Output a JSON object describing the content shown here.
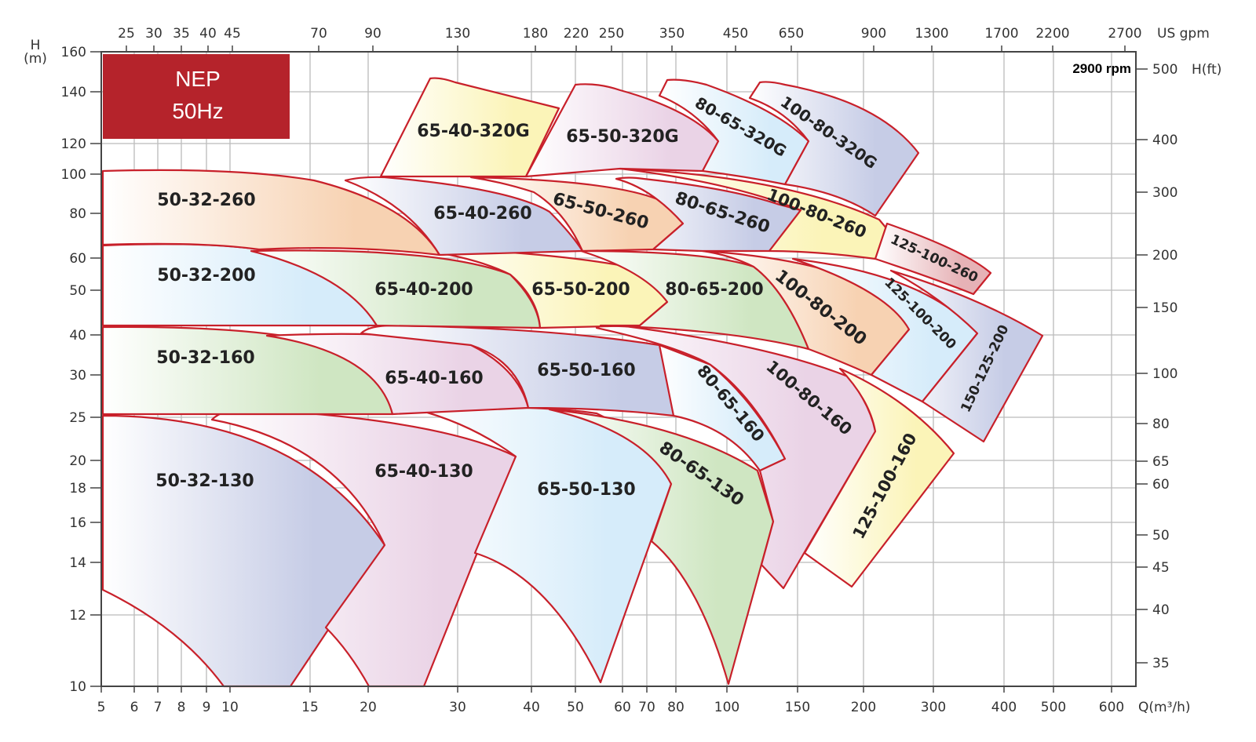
{
  "brand_box": {
    "line1": "NEP",
    "line2": "50Hz",
    "color": "#b5232b"
  },
  "speed_label": "2900 rpm",
  "chart_data": {
    "type": "area",
    "title": "",
    "x_axis": {
      "label": "Q(m³/h)",
      "scale": "log",
      "range": [
        5,
        700
      ],
      "ticks": [
        5,
        6,
        7,
        8,
        9,
        10,
        15,
        20,
        30,
        40,
        50,
        60,
        70,
        80,
        100,
        150,
        200,
        300,
        400,
        500,
        600
      ]
    },
    "x2_axis": {
      "label": "US gpm",
      "position": "top",
      "ticks": [
        25,
        30,
        35,
        40,
        45,
        70,
        90,
        130,
        180,
        220,
        250,
        350,
        450,
        650,
        900,
        1300,
        1700,
        2200,
        2700
      ]
    },
    "y_axis": {
      "label_top": "H",
      "label_unit": "(m)",
      "scale": "log",
      "range": [
        10,
        160
      ],
      "ticks": [
        10,
        12,
        14,
        16,
        18,
        20,
        25,
        30,
        40,
        50,
        60,
        80,
        100,
        120,
        140,
        160
      ]
    },
    "y2_axis": {
      "label": "H(ft)",
      "position": "right",
      "ticks": [
        500,
        400,
        300,
        200,
        150,
        100,
        80,
        65,
        60,
        50,
        45,
        40,
        35
      ]
    },
    "grid": true,
    "curve_color": "#c8202a",
    "palette": {
      "peach": "#f7d2b2",
      "blue": "#d6ecfa",
      "green": "#cfe6c2",
      "lavender": "#c6cce6",
      "pink": "#ead3e6",
      "yellow": "#fbf4b8",
      "rose": "#e6b2b6"
    },
    "regions": [
      {
        "name": "50-32-130",
        "color": "lavender"
      },
      {
        "name": "65-40-130",
        "color": "pink"
      },
      {
        "name": "65-50-130",
        "color": "blue"
      },
      {
        "name": "80-65-130",
        "color": "green"
      },
      {
        "name": "50-32-160",
        "color": "green"
      },
      {
        "name": "65-40-160",
        "color": "pink"
      },
      {
        "name": "65-50-160",
        "color": "lavender"
      },
      {
        "name": "80-65-160",
        "color": "blue"
      },
      {
        "name": "100-80-160",
        "color": "pink"
      },
      {
        "name": "125-100-160",
        "color": "yellow"
      },
      {
        "name": "50-32-200",
        "color": "blue"
      },
      {
        "name": "65-40-200",
        "color": "green"
      },
      {
        "name": "65-50-200",
        "color": "yellow"
      },
      {
        "name": "80-65-200",
        "color": "green"
      },
      {
        "name": "100-80-200",
        "color": "peach"
      },
      {
        "name": "125-100-200",
        "color": "blue"
      },
      {
        "name": "150-125-200",
        "color": "lavender"
      },
      {
        "name": "50-32-260",
        "color": "peach"
      },
      {
        "name": "65-40-260",
        "color": "lavender"
      },
      {
        "name": "65-50-260",
        "color": "peach"
      },
      {
        "name": "80-65-260",
        "color": "lavender"
      },
      {
        "name": "100-80-260",
        "color": "yellow"
      },
      {
        "name": "125-100-260",
        "color": "rose"
      },
      {
        "name": "65-40-320G",
        "color": "yellow"
      },
      {
        "name": "65-50-320G",
        "color": "pink"
      },
      {
        "name": "80-65-320G",
        "color": "blue"
      },
      {
        "name": "100-80-320G",
        "color": "lavender"
      }
    ]
  }
}
